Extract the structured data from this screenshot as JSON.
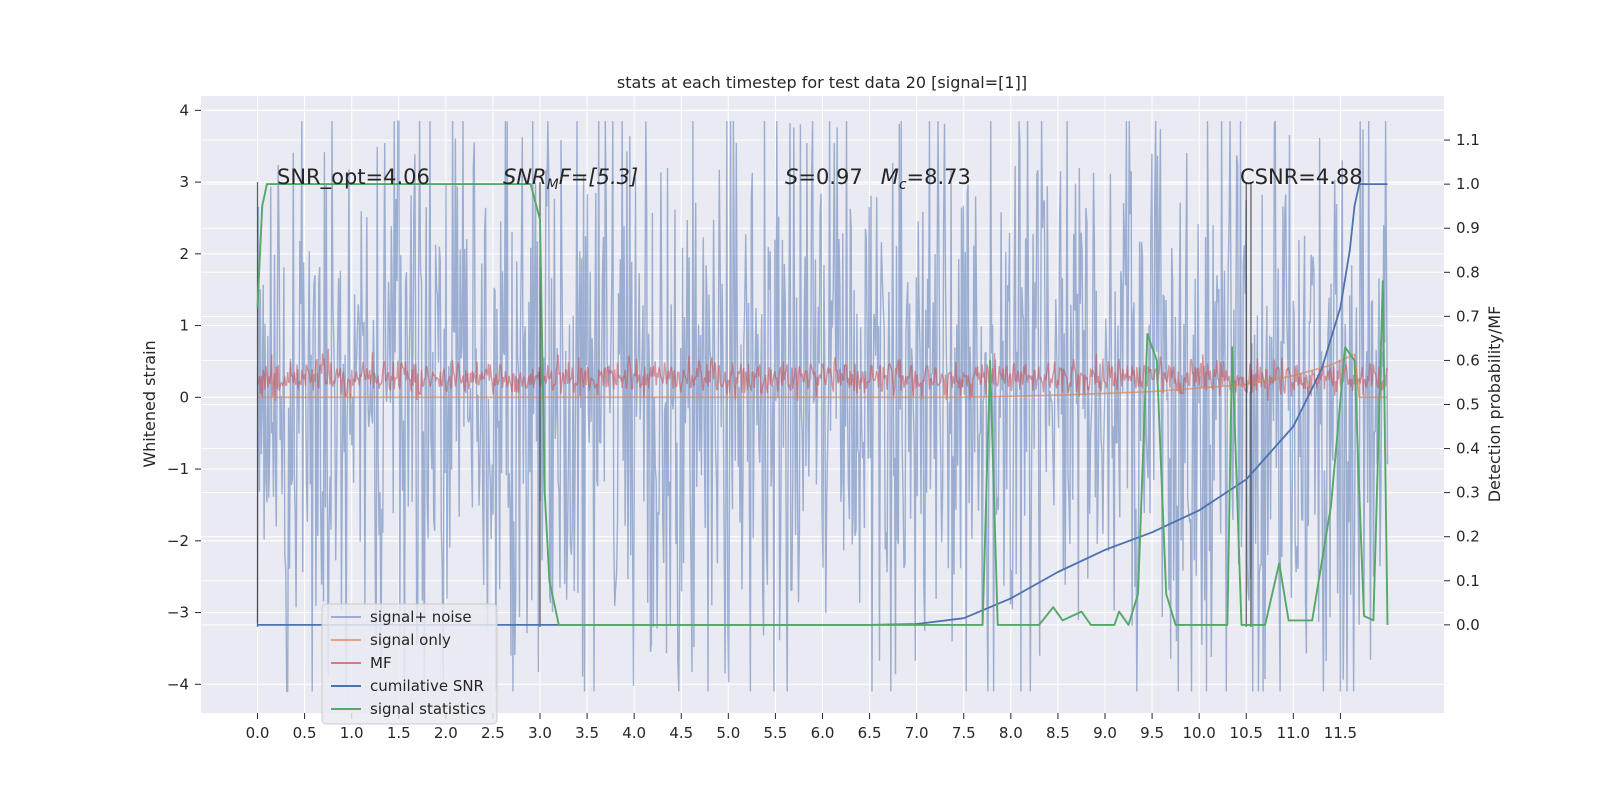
{
  "chart_data": {
    "type": "line",
    "title": "stats at each timestep for test data 20 [signal=[1]]",
    "xlabel": "",
    "ylabel": "Whitened strain",
    "ylabel_right": "Detection probability/MF",
    "xlim": [
      -0.6,
      12.6
    ],
    "ylim": [
      -4.4,
      4.2
    ],
    "ylim_right": [
      -0.2,
      1.2
    ],
    "x_ticks": [
      "0.0",
      "0.5",
      "1.0",
      "1.5",
      "2.0",
      "2.5",
      "3.0",
      "3.5",
      "4.0",
      "4.5",
      "5.0",
      "5.5",
      "6.0",
      "6.5",
      "7.0",
      "7.5",
      "8.0",
      "8.5",
      "9.0",
      "9.5",
      "10.0",
      "10.5",
      "11.0",
      "11.5"
    ],
    "y_ticks": [
      "4",
      "3",
      "2",
      "1",
      "0",
      "−1",
      "−2",
      "−3",
      "−4"
    ],
    "y_ticks_right": [
      "1.1",
      "1.0",
      "0.9",
      "0.8",
      "0.7",
      "0.6",
      "0.5",
      "0.4",
      "0.3",
      "0.2",
      "0.1",
      "0.0"
    ],
    "grid": true,
    "legend_position": "lower-left",
    "annotations": {
      "snr_opt": "SNR_opt=4.06",
      "snr_mf_base": "SNR",
      "snr_mf_sub": "M",
      "snr_mf_tail": "F=[5.3]",
      "s_label": "S",
      "s_value": "=0.97",
      "mc_label": "M",
      "mc_sub": "c",
      "mc_value": "=8.73",
      "csnr": "CSNR=4.88"
    },
    "vertical_markers": [
      0.0,
      3.0,
      10.5,
      10.55
    ],
    "series": [
      {
        "name": "signal+ noise",
        "color": "#4c72b0",
        "axis": "left",
        "style": "noise band",
        "x_range": [
          0.0,
          12.0
        ],
        "typical_range": [
          -2.1,
          2.2
        ],
        "max": 3.85,
        "min": -4.1
      },
      {
        "name": "signal only",
        "color": "#dd8452",
        "axis": "left",
        "style": "chirp",
        "points": [
          [
            0.0,
            0.0
          ],
          [
            7.5,
            0.0
          ],
          [
            8.5,
            0.03
          ],
          [
            9.5,
            0.08
          ],
          [
            10.5,
            0.18
          ],
          [
            11.0,
            0.3
          ],
          [
            11.4,
            0.45
          ],
          [
            11.65,
            0.6
          ],
          [
            11.7,
            0.0
          ],
          [
            12.0,
            0.0
          ]
        ]
      },
      {
        "name": "MF",
        "color": "#c44e52",
        "axis": "left",
        "style": "noise band",
        "x_range": [
          0.0,
          12.0
        ],
        "typical_range": [
          0.0,
          0.5
        ],
        "max": 1.0,
        "min": -0.05
      },
      {
        "name": "cumilative SNR",
        "color": "#4c72b0",
        "axis": "right",
        "points": [
          [
            0.0,
            0.0
          ],
          [
            6.5,
            0.0
          ],
          [
            7.0,
            0.002
          ],
          [
            7.5,
            0.015
          ],
          [
            8.0,
            0.06
          ],
          [
            8.5,
            0.12
          ],
          [
            9.0,
            0.17
          ],
          [
            9.5,
            0.21
          ],
          [
            10.0,
            0.26
          ],
          [
            10.5,
            0.33
          ],
          [
            11.0,
            0.45
          ],
          [
            11.3,
            0.58
          ],
          [
            11.5,
            0.72
          ],
          [
            11.6,
            0.85
          ],
          [
            11.65,
            0.95
          ],
          [
            11.7,
            1.0
          ],
          [
            12.0,
            1.0
          ]
        ]
      },
      {
        "name": "signal statistics",
        "color": "#55a868",
        "axis": "right",
        "points": [
          [
            0.0,
            0.72
          ],
          [
            0.05,
            0.95
          ],
          [
            0.1,
            1.0
          ],
          [
            2.9,
            1.0
          ],
          [
            3.0,
            0.92
          ],
          [
            3.05,
            0.3
          ],
          [
            3.1,
            0.1
          ],
          [
            3.2,
            0.0
          ],
          [
            7.7,
            0.0
          ],
          [
            7.78,
            0.6
          ],
          [
            7.86,
            0.0
          ],
          [
            8.3,
            0.0
          ],
          [
            8.45,
            0.04
          ],
          [
            8.55,
            0.01
          ],
          [
            8.65,
            0.02
          ],
          [
            8.75,
            0.03
          ],
          [
            8.85,
            0.0
          ],
          [
            9.1,
            0.0
          ],
          [
            9.15,
            0.03
          ],
          [
            9.25,
            0.0
          ],
          [
            9.35,
            0.07
          ],
          [
            9.45,
            0.66
          ],
          [
            9.55,
            0.6
          ],
          [
            9.65,
            0.07
          ],
          [
            9.75,
            0.0
          ],
          [
            10.3,
            0.0
          ],
          [
            10.35,
            0.63
          ],
          [
            10.45,
            0.0
          ],
          [
            10.7,
            0.0
          ],
          [
            10.85,
            0.14
          ],
          [
            10.95,
            0.01
          ],
          [
            11.2,
            0.01
          ],
          [
            11.4,
            0.27
          ],
          [
            11.55,
            0.63
          ],
          [
            11.65,
            0.6
          ],
          [
            11.7,
            0.3
          ],
          [
            11.75,
            0.02
          ],
          [
            11.85,
            0.01
          ],
          [
            11.95,
            0.78
          ],
          [
            12.0,
            0.0
          ]
        ]
      }
    ]
  }
}
